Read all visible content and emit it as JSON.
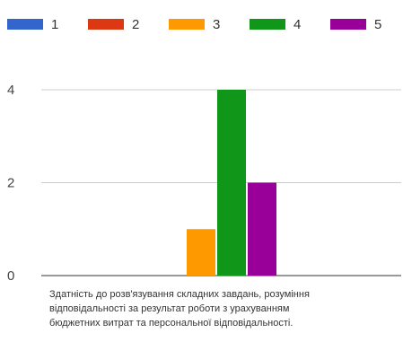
{
  "chart_data": {
    "type": "bar",
    "categories": [
      "Здатність до розв'язування складних завдань, розуміння відповідальності за результат роботи з урахуванням бюджетних витрат та персональної відповідальності."
    ],
    "category_label_lines": [
      "Здатність до розв'язування складних завдань, розуміння",
      "відповідальності за результат роботи з урахуванням",
      "бюджетних витрат та персональної відповідальності."
    ],
    "series": [
      {
        "name": "1",
        "color": "#3366cc",
        "values": [
          0
        ]
      },
      {
        "name": "2",
        "color": "#dc3912",
        "values": [
          0
        ]
      },
      {
        "name": "3",
        "color": "#ff9900",
        "values": [
          1
        ]
      },
      {
        "name": "4",
        "color": "#109618",
        "values": [
          4
        ]
      },
      {
        "name": "5",
        "color": "#990099",
        "values": [
          2
        ]
      }
    ],
    "ylim": [
      0,
      4
    ],
    "y_ticks": [
      "0",
      "2",
      "4"
    ],
    "legend_position": "top",
    "grid": true
  }
}
